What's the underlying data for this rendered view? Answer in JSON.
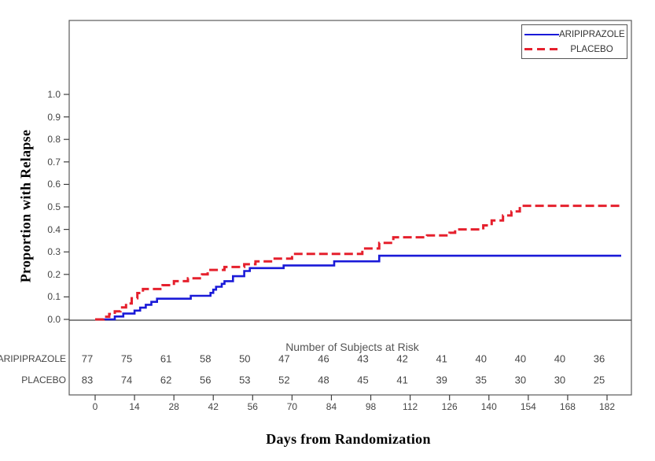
{
  "chart_data": {
    "type": "line",
    "subtype": "kaplan-meier-step",
    "title": "",
    "xlabel": "Days from Randomization",
    "ylabel": "Proportion with Relapse",
    "xlim": [
      0,
      182
    ],
    "ylim": [
      0.0,
      1.0
    ],
    "grid": "off",
    "legend_position": "top-right",
    "x_ticks": [
      0,
      14,
      28,
      42,
      56,
      70,
      84,
      98,
      112,
      126,
      140,
      154,
      168,
      182
    ],
    "y_ticks": [
      0.0,
      0.1,
      0.2,
      0.3,
      0.4,
      0.5,
      0.6,
      0.7,
      0.8,
      0.9,
      1.0
    ],
    "series": [
      {
        "name": "ARIPIPRAZOLE",
        "color": "#1a1ad8",
        "line_style": "solid",
        "points": [
          [
            0,
            0.0
          ],
          [
            7,
            0.013
          ],
          [
            10,
            0.026
          ],
          [
            14,
            0.039
          ],
          [
            16,
            0.052
          ],
          [
            18,
            0.065
          ],
          [
            20,
            0.078
          ],
          [
            22,
            0.092
          ],
          [
            34,
            0.105
          ],
          [
            41,
            0.118
          ],
          [
            42,
            0.132
          ],
          [
            43,
            0.145
          ],
          [
            45,
            0.158
          ],
          [
            46,
            0.17
          ],
          [
            49,
            0.192
          ],
          [
            53,
            0.215
          ],
          [
            55,
            0.228
          ],
          [
            67,
            0.24
          ],
          [
            85,
            0.258
          ],
          [
            101,
            0.283
          ],
          [
            182,
            0.283
          ]
        ]
      },
      {
        "name": "PLACEBO",
        "color": "#e5202d",
        "line_style": "dashed",
        "points": [
          [
            0,
            0.0
          ],
          [
            3,
            0.012
          ],
          [
            5,
            0.024
          ],
          [
            7,
            0.036
          ],
          [
            9,
            0.053
          ],
          [
            11,
            0.071
          ],
          [
            13,
            0.094
          ],
          [
            15,
            0.117
          ],
          [
            17,
            0.135
          ],
          [
            24,
            0.152
          ],
          [
            28,
            0.17
          ],
          [
            33,
            0.183
          ],
          [
            38,
            0.2
          ],
          [
            40,
            0.22
          ],
          [
            46,
            0.233
          ],
          [
            53,
            0.245
          ],
          [
            57,
            0.258
          ],
          [
            63,
            0.27
          ],
          [
            70,
            0.291
          ],
          [
            95,
            0.315
          ],
          [
            101,
            0.34
          ],
          [
            106,
            0.365
          ],
          [
            118,
            0.373
          ],
          [
            126,
            0.385
          ],
          [
            128,
            0.4
          ],
          [
            138,
            0.418
          ],
          [
            141,
            0.44
          ],
          [
            145,
            0.462
          ],
          [
            148,
            0.48
          ],
          [
            151,
            0.505
          ],
          [
            182,
            0.505
          ]
        ]
      }
    ],
    "risk_table": {
      "title": "Number of Subjects at Risk",
      "days": [
        0,
        14,
        28,
        42,
        56,
        70,
        84,
        98,
        112,
        126,
        140,
        154,
        168,
        182
      ],
      "rows": [
        {
          "label": "ARIPIPRAZOLE",
          "counts": [
            77,
            75,
            61,
            58,
            50,
            47,
            46,
            43,
            42,
            41,
            40,
            40,
            40,
            36
          ]
        },
        {
          "label": "PLACEBO",
          "counts": [
            83,
            74,
            62,
            56,
            53,
            52,
            48,
            45,
            41,
            39,
            35,
            30,
            30,
            25
          ]
        }
      ]
    }
  }
}
